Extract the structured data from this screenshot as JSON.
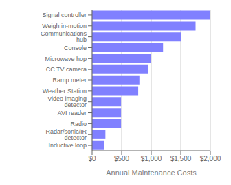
{
  "chart_data": {
    "type": "bar",
    "orientation": "horizontal",
    "xlabel": "Annual Maintenance Costs",
    "categories": [
      "Inductive loop",
      "Radar/sonic/IR detector",
      "Radio",
      "AVI reader",
      "Video imaging detector",
      "Weather Station",
      "Ramp meter",
      "CC TV camera",
      "Microwave hop",
      "Console",
      "Communications hub",
      "Weigh in-motion",
      "Signal controller"
    ],
    "values": [
      200,
      225,
      490,
      490,
      490,
      780,
      800,
      950,
      1000,
      1200,
      1500,
      1750,
      2000
    ],
    "color": "#8080ff",
    "xlim": [
      0,
      2000
    ],
    "xticks": [
      {
        "value": 0,
        "label": "$0"
      },
      {
        "value": 500,
        "label": "$500"
      },
      {
        "value": 1000,
        "label": "$1,000"
      },
      {
        "value": 1500,
        "label": "$1,500"
      },
      {
        "value": 2000,
        "label": "$2,000"
      }
    ],
    "grid": true
  }
}
